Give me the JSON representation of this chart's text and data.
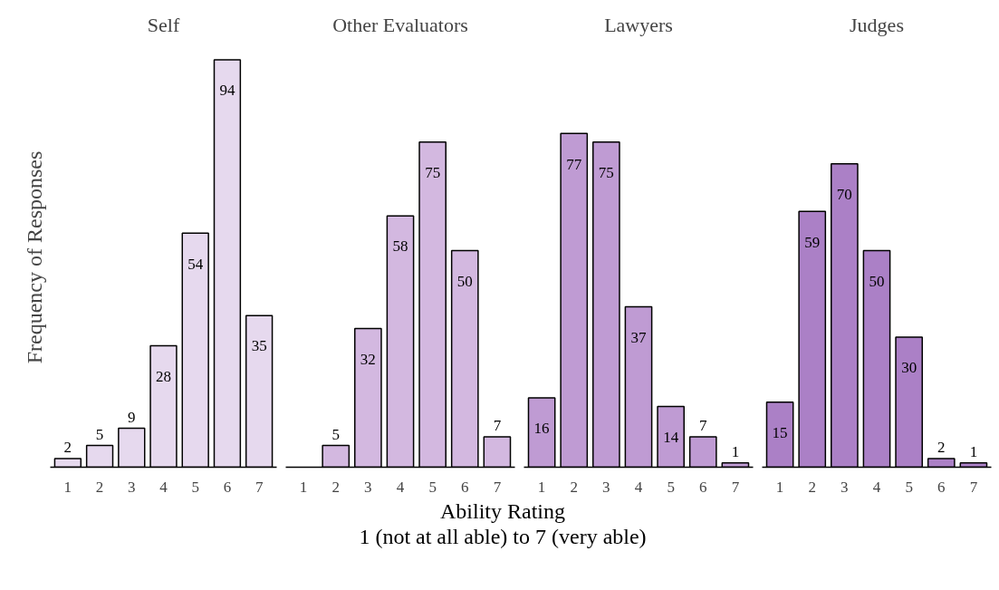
{
  "chart_data": [
    {
      "type": "bar",
      "title": "Self",
      "ylabel": "Frequency of Responses",
      "xlabel": "Ability Rating\n1 (not at all able) to 7 (very able)",
      "categories": [
        "1",
        "2",
        "3",
        "4",
        "5",
        "6",
        "7"
      ],
      "values": [
        2,
        5,
        9,
        28,
        54,
        94,
        35
      ],
      "color": "#e6d9ee",
      "data_labels": true,
      "tick_labels": "x",
      "grid": false
    },
    {
      "type": "bar",
      "title": "Other Evaluators",
      "categories": [
        "1",
        "2",
        "3",
        "4",
        "5",
        "6",
        "7"
      ],
      "values": [
        null,
        5,
        32,
        58,
        75,
        50,
        7
      ],
      "color": "#d3b8e0",
      "data_labels": true,
      "tick_labels": "x",
      "grid": false
    },
    {
      "type": "bar",
      "title": "Lawyers",
      "categories": [
        "1",
        "2",
        "3",
        "4",
        "5",
        "6",
        "7"
      ],
      "values": [
        16,
        77,
        75,
        37,
        14,
        7,
        1
      ],
      "color": "#bf9bd3",
      "data_labels": true,
      "tick_labels": "x",
      "grid": false
    },
    {
      "type": "bar",
      "title": "Judges",
      "categories": [
        "1",
        "2",
        "3",
        "4",
        "5",
        "6",
        "7"
      ],
      "values": [
        15,
        59,
        70,
        50,
        30,
        2,
        1
      ],
      "color": "#ab80c6",
      "data_labels": true,
      "tick_labels": "x",
      "grid": false
    }
  ]
}
